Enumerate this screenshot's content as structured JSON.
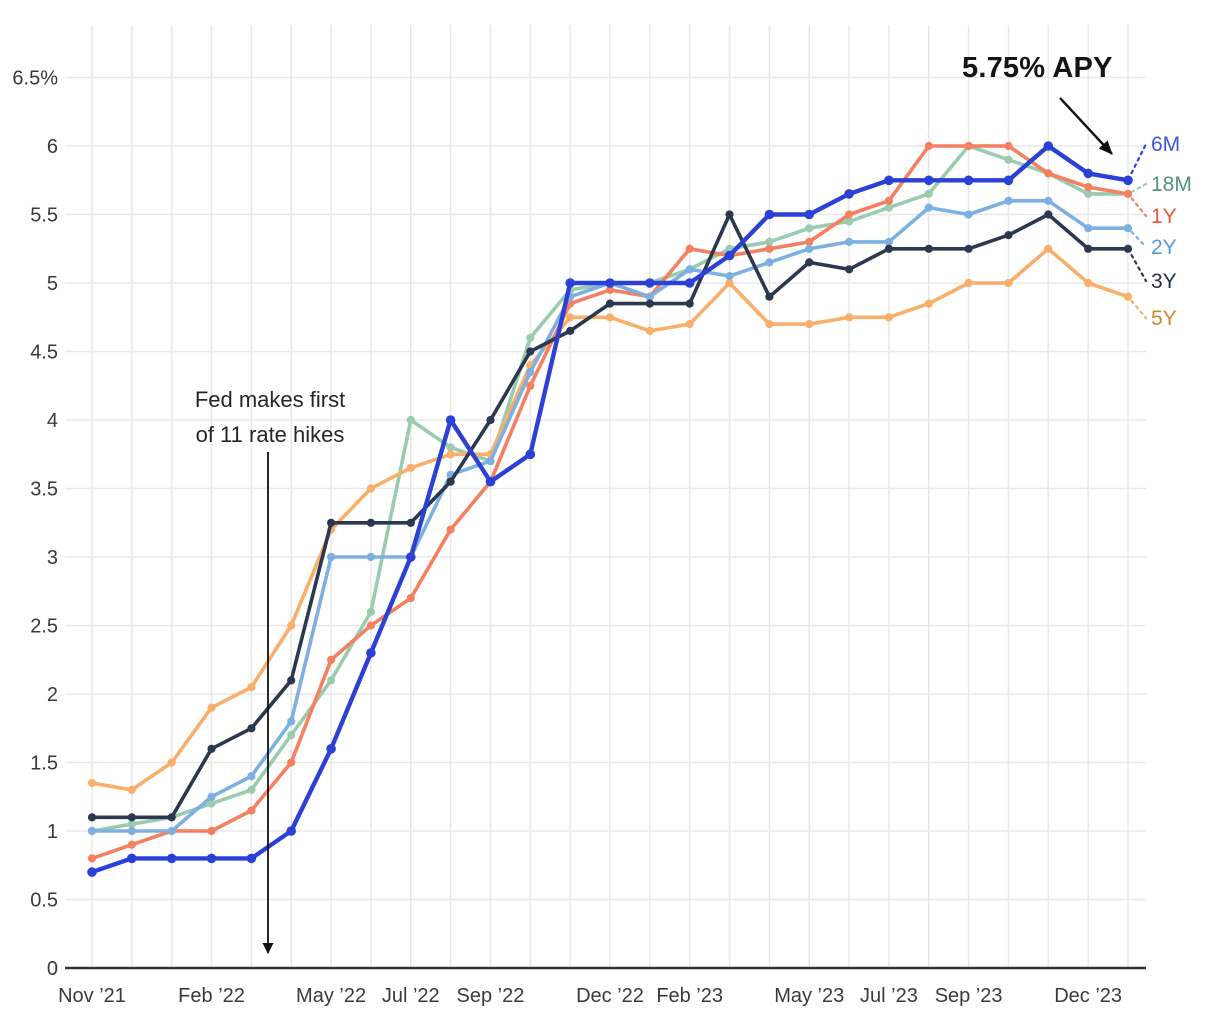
{
  "chart_data": {
    "type": "line",
    "title": "",
    "unit": "%",
    "ylim": [
      0,
      6.5
    ],
    "grid": true,
    "legend_position": "right-of-lines",
    "months": [
      "Nov ’21",
      "Dec ’21",
      "Jan ’22",
      "Feb ’22",
      "Mar ’22",
      "Apr ’22",
      "May ’22",
      "Jun ’22",
      "Jul ’22",
      "Aug ’22",
      "Sep ’22",
      "Oct ’22",
      "Nov ’22",
      "Dec ’22",
      "Jan ’23",
      "Feb ’23",
      "Mar ’23",
      "Apr ’23",
      "May ’23",
      "Jun ’23",
      "Jul ’23",
      "Aug ’23",
      "Sep ’23",
      "Oct ’23",
      "Nov ’23",
      "Dec ’23",
      "Jan ’24"
    ],
    "x_tick_labels": [
      {
        "label": "Nov ’21",
        "month_index": 0
      },
      {
        "label": "Feb ’22",
        "month_index": 3
      },
      {
        "label": "May ’22",
        "month_index": 6
      },
      {
        "label": "Jul ’22",
        "month_index": 8
      },
      {
        "label": "Sep ’22",
        "month_index": 10
      },
      {
        "label": "Dec ’22",
        "month_index": 13
      },
      {
        "label": "Feb ’23",
        "month_index": 15
      },
      {
        "label": "May ’23",
        "month_index": 18
      },
      {
        "label": "Jul ’23",
        "month_index": 20
      },
      {
        "label": "Sep ’23",
        "month_index": 22
      },
      {
        "label": "Dec ’23",
        "month_index": 25
      }
    ],
    "y_tick_labels": [
      {
        "label": "0",
        "value": 0
      },
      {
        "label": "0.5",
        "value": 0.5
      },
      {
        "label": "1",
        "value": 1
      },
      {
        "label": "1.5",
        "value": 1.5
      },
      {
        "label": "2",
        "value": 2
      },
      {
        "label": "2.5",
        "value": 2.5
      },
      {
        "label": "3",
        "value": 3
      },
      {
        "label": "3.5",
        "value": 3.5
      },
      {
        "label": "4",
        "value": 4
      },
      {
        "label": "4.5",
        "value": 4.5
      },
      {
        "label": "5",
        "value": 5
      },
      {
        "label": "5.5",
        "value": 5.5
      },
      {
        "label": "6",
        "value": 6
      },
      {
        "label": "6.5%",
        "value": 6.5
      }
    ],
    "series": [
      {
        "name": "6M",
        "color": "#2b41d6",
        "label_color": "#3d56dc",
        "values": [
          0.7,
          0.8,
          0.8,
          0.8,
          0.8,
          1.0,
          1.6,
          2.3,
          3.0,
          4.0,
          3.55,
          3.75,
          5.0,
          5.0,
          5.0,
          5.0,
          5.2,
          5.5,
          5.5,
          5.65,
          5.75,
          5.75,
          5.75,
          5.75,
          6.0,
          5.8,
          5.75
        ]
      },
      {
        "name": "18M",
        "color": "#99ccaf",
        "label_color": "#55917f",
        "values": [
          1.0,
          1.05,
          1.1,
          1.2,
          1.3,
          1.7,
          2.1,
          2.6,
          4.0,
          3.8,
          3.7,
          4.6,
          4.95,
          5.0,
          5.0,
          5.1,
          5.25,
          5.3,
          5.4,
          5.45,
          5.55,
          5.65,
          6.0,
          5.9,
          5.8,
          5.65,
          5.65
        ]
      },
      {
        "name": "1Y",
        "color": "#f57f61",
        "label_color": "#e05a3e",
        "values": [
          0.8,
          0.9,
          1.0,
          1.0,
          1.15,
          1.5,
          2.25,
          2.5,
          2.7,
          3.2,
          3.55,
          4.25,
          4.85,
          4.95,
          4.9,
          5.25,
          5.2,
          5.25,
          5.3,
          5.5,
          5.6,
          6.0,
          6.0,
          6.0,
          5.8,
          5.7,
          5.65
        ]
      },
      {
        "name": "2Y",
        "color": "#7cb0e2",
        "label_color": "#5b9cd6",
        "values": [
          1.0,
          1.0,
          1.0,
          1.25,
          1.4,
          1.8,
          3.0,
          3.0,
          3.0,
          3.6,
          3.7,
          4.35,
          4.9,
          5.0,
          4.9,
          5.1,
          5.05,
          5.15,
          5.25,
          5.3,
          5.3,
          5.55,
          5.5,
          5.6,
          5.6,
          5.4,
          5.4
        ]
      },
      {
        "name": "3Y",
        "color": "#2b3850",
        "label_color": "#25304a",
        "values": [
          1.1,
          1.1,
          1.1,
          1.6,
          1.75,
          2.1,
          3.25,
          3.25,
          3.25,
          3.55,
          4.0,
          4.5,
          4.65,
          4.85,
          4.85,
          4.85,
          5.5,
          4.9,
          5.15,
          5.1,
          5.25,
          5.25,
          5.25,
          5.35,
          5.5,
          5.25,
          5.25
        ]
      },
      {
        "name": "5Y",
        "color": "#f9ae69",
        "label_color": "#c9882f",
        "values": [
          1.35,
          1.3,
          1.5,
          1.9,
          2.05,
          2.5,
          3.2,
          3.5,
          3.65,
          3.75,
          3.75,
          4.4,
          4.75,
          4.75,
          4.65,
          4.7,
          5.0,
          4.7,
          4.7,
          4.75,
          4.75,
          4.85,
          5.0,
          5.0,
          5.25,
          5.0,
          4.9
        ]
      }
    ],
    "annotations": {
      "rate_label": "5.75% APY",
      "fed_line1": "Fed makes first",
      "fed_line2": "of 11 rate hikes"
    },
    "colors": {
      "gridline": "#e8e8e8",
      "axis": "#333333",
      "tick_text": "#3a3a3a",
      "annotation_text": "#141414",
      "arrow": "#111111"
    }
  }
}
